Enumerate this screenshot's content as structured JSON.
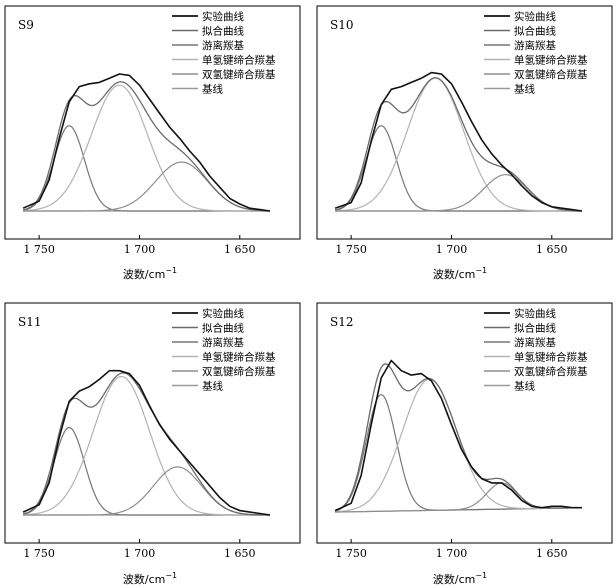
{
  "figure": {
    "xlabel_base": "波数/cm",
    "xlabel_exp": "−1"
  },
  "legend": [
    "实验曲线",
    "拟合曲线",
    "游离羰基",
    "单氢键缔合羰基",
    "双氢键缔合羰基",
    "基线"
  ],
  "colors": {
    "experimental": "#111111",
    "fit": "#6b6b6b",
    "free": "#777777",
    "single_hbond": "#b3b3b3",
    "double_hbond": "#8e8e8e",
    "baseline": "#9a9a9a",
    "axes": "#000000"
  },
  "chart_data": [
    {
      "type": "line",
      "title": "S9",
      "xlabel": "波数/cm−1",
      "xlim": [
        1767,
        1620
      ],
      "ylim": [
        0,
        1.18
      ],
      "xticks": [
        1750,
        1700,
        1650
      ],
      "xtick_labels": [
        "1 750",
        "1 700",
        "1 650"
      ],
      "grid": false,
      "legend_position": "top-right",
      "components": [
        {
          "name": "游离羰基",
          "center": 1735,
          "amplitude": 0.61,
          "sigma": 7.5
        },
        {
          "name": "单氢键缔合羰基",
          "center": 1710,
          "amplitude": 0.9,
          "sigma": 14
        },
        {
          "name": "双氢键缔合羰基",
          "center": 1679,
          "amplitude": 0.35,
          "sigma": 13
        }
      ],
      "baseline": [
        [
          1758,
          0
        ],
        [
          1635,
          0
        ]
      ],
      "series": [
        {
          "name": "实验曲线",
          "x": [
            1758,
            1750,
            1745,
            1740,
            1735,
            1730,
            1725,
            1720,
            1715,
            1710,
            1705,
            1700,
            1695,
            1690,
            1685,
            1680,
            1675,
            1670,
            1665,
            1660,
            1655,
            1650,
            1645,
            1640,
            1635
          ],
          "y": [
            0.02,
            0.07,
            0.22,
            0.52,
            0.78,
            0.89,
            0.91,
            0.92,
            0.95,
            0.98,
            0.97,
            0.9,
            0.8,
            0.7,
            0.6,
            0.52,
            0.43,
            0.35,
            0.25,
            0.17,
            0.09,
            0.05,
            0.02,
            0.01,
            0.0
          ]
        }
      ]
    },
    {
      "type": "line",
      "title": "S10",
      "xlabel": "波数/cm−1",
      "xlim": [
        1767,
        1620
      ],
      "ylim": [
        0,
        1.18
      ],
      "xticks": [
        1750,
        1700,
        1650
      ],
      "xtick_labels": [
        "1 750",
        "1 700",
        "1 650"
      ],
      "grid": false,
      "legend_position": "top-right",
      "components": [
        {
          "name": "游离羰基",
          "center": 1735,
          "amplitude": 0.61,
          "sigma": 7.5
        },
        {
          "name": "单氢键缔合羰基",
          "center": 1708,
          "amplitude": 0.95,
          "sigma": 14
        },
        {
          "name": "双氢键缔合羰基",
          "center": 1673,
          "amplitude": 0.26,
          "sigma": 11
        }
      ],
      "baseline": [
        [
          1758,
          0
        ],
        [
          1635,
          0
        ]
      ],
      "series": [
        {
          "name": "实验曲线",
          "x": [
            1758,
            1750,
            1745,
            1740,
            1735,
            1730,
            1725,
            1720,
            1715,
            1710,
            1705,
            1700,
            1695,
            1690,
            1685,
            1680,
            1675,
            1670,
            1665,
            1660,
            1655,
            1650,
            1645,
            1640,
            1635
          ],
          "y": [
            0.02,
            0.06,
            0.2,
            0.5,
            0.76,
            0.87,
            0.89,
            0.92,
            0.95,
            0.99,
            0.98,
            0.91,
            0.78,
            0.64,
            0.51,
            0.41,
            0.33,
            0.26,
            0.18,
            0.11,
            0.06,
            0.03,
            0.02,
            0.01,
            0.0
          ]
        }
      ]
    },
    {
      "type": "line",
      "title": "S11",
      "xlabel": "波数/cm−1",
      "xlim": [
        1767,
        1620
      ],
      "ylim": [
        0,
        1.18
      ],
      "xticks": [
        1750,
        1700,
        1650
      ],
      "xtick_labels": [
        "1 750",
        "1 700",
        "1 650"
      ],
      "grid": false,
      "legend_position": "top-right",
      "components": [
        {
          "name": "游离羰基",
          "center": 1735,
          "amplitude": 0.6,
          "sigma": 7.5
        },
        {
          "name": "单氢键缔合羰基",
          "center": 1709,
          "amplitude": 0.95,
          "sigma": 14
        },
        {
          "name": "双氢键缔合羰基",
          "center": 1681,
          "amplitude": 0.33,
          "sigma": 12
        }
      ],
      "baseline": [
        [
          1758,
          0
        ],
        [
          1635,
          0
        ]
      ],
      "series": [
        {
          "name": "实验曲线",
          "x": [
            1758,
            1750,
            1745,
            1740,
            1735,
            1730,
            1725,
            1720,
            1715,
            1710,
            1705,
            1700,
            1695,
            1690,
            1685,
            1680,
            1675,
            1670,
            1665,
            1660,
            1655,
            1650,
            1645,
            1640,
            1635
          ],
          "y": [
            0.02,
            0.07,
            0.22,
            0.53,
            0.78,
            0.85,
            0.88,
            0.93,
            0.99,
            0.99,
            0.97,
            0.89,
            0.75,
            0.62,
            0.52,
            0.44,
            0.36,
            0.28,
            0.2,
            0.12,
            0.06,
            0.03,
            0.02,
            0.01,
            0.0
          ]
        }
      ]
    },
    {
      "type": "line",
      "title": "S12",
      "xlabel": "波数/cm−1",
      "xlim": [
        1767,
        1620
      ],
      "ylim": [
        0,
        1.18
      ],
      "xticks": [
        1750,
        1700,
        1650
      ],
      "xtick_labels": [
        "1 750",
        "1 700",
        "1 650"
      ],
      "grid": false,
      "legend_position": "top-right",
      "components": [
        {
          "name": "游离羰基",
          "center": 1735,
          "amplitude": 0.8,
          "sigma": 7.5
        },
        {
          "name": "单氢键缔合羰基",
          "center": 1711,
          "amplitude": 0.9,
          "sigma": 13.5
        },
        {
          "name": "双氢键缔合羰基",
          "center": 1675,
          "amplitude": 0.18,
          "sigma": 7.5
        }
      ],
      "baseline": [
        [
          1758,
          0.02
        ],
        [
          1635,
          0.05
        ]
      ],
      "series": [
        {
          "name": "实验曲线",
          "x": [
            1758,
            1750,
            1745,
            1740,
            1735,
            1730,
            1725,
            1720,
            1715,
            1710,
            1705,
            1700,
            1695,
            1690,
            1685,
            1680,
            1675,
            1670,
            1665,
            1660,
            1655,
            1650,
            1645,
            1640,
            1635
          ],
          "y": [
            0.03,
            0.08,
            0.27,
            0.62,
            0.94,
            1.06,
            0.99,
            0.96,
            0.97,
            0.92,
            0.8,
            0.62,
            0.45,
            0.33,
            0.25,
            0.22,
            0.22,
            0.17,
            0.1,
            0.06,
            0.05,
            0.06,
            0.06,
            0.05,
            0.05
          ]
        }
      ]
    }
  ]
}
